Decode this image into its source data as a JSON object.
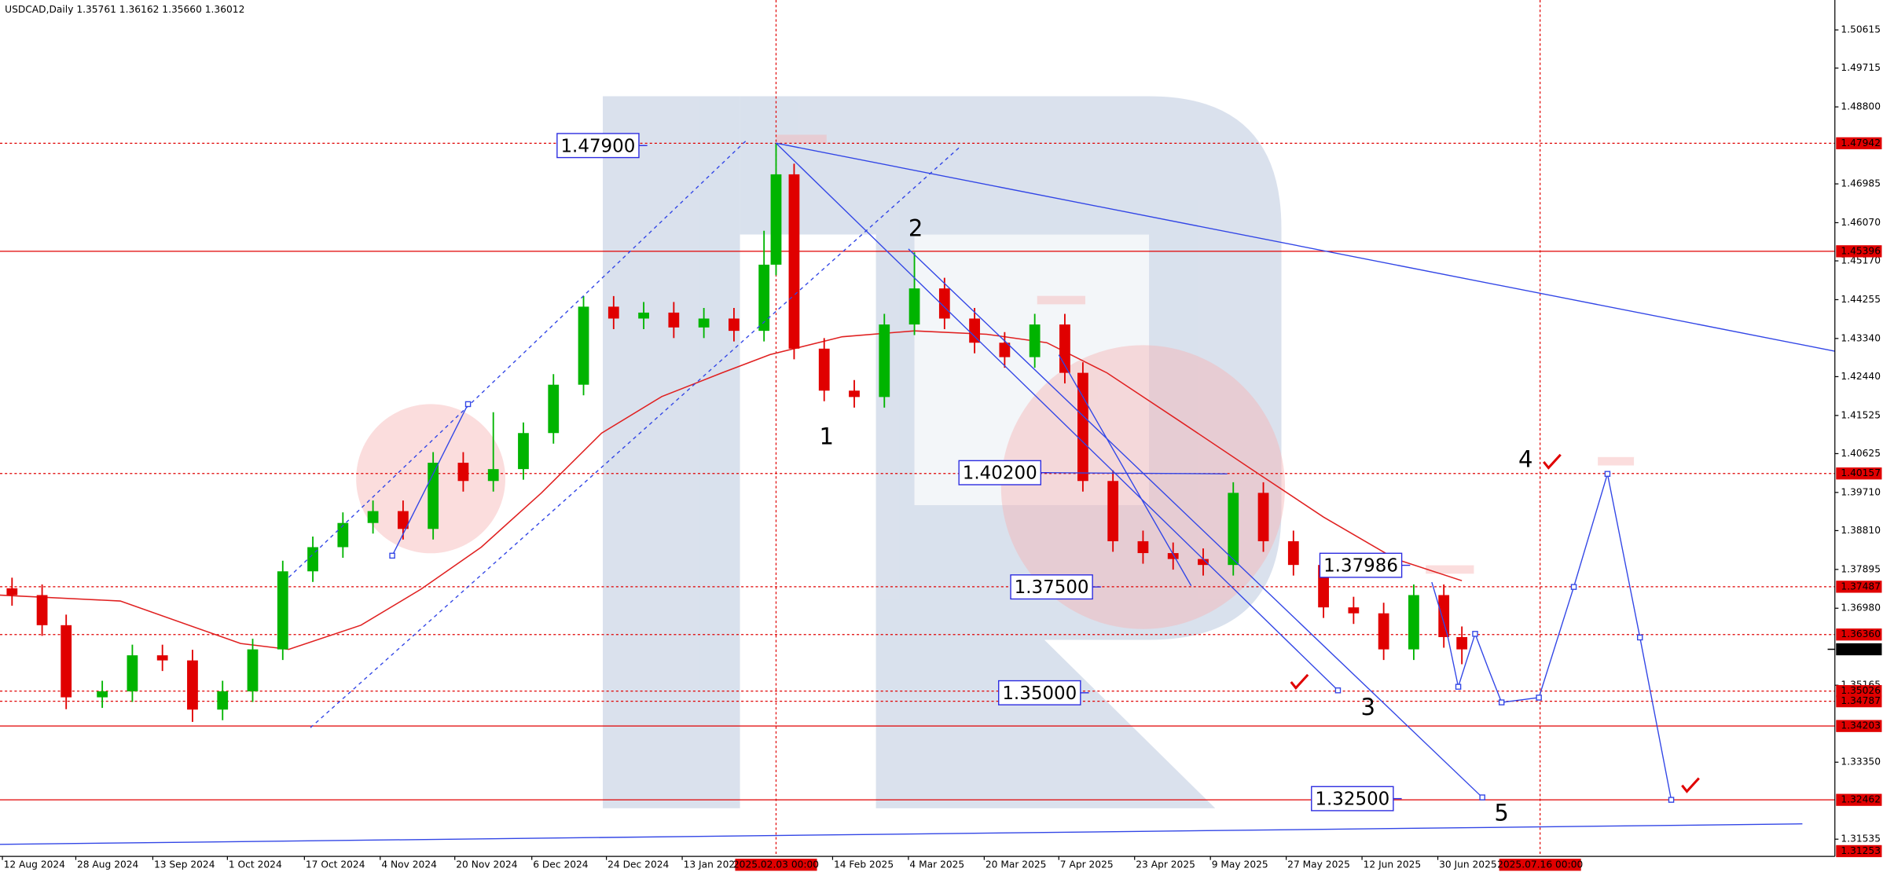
{
  "chart_data": {
    "type": "candlestick",
    "title": "USDCAD,Daily  1.35761 1.36162 1.35660 1.36012",
    "xlim": [
      0,
      305
    ],
    "ylim": [
      1.3113,
      1.5132
    ],
    "xticks": [
      {
        "value": 0.4,
        "label": "12 Aug 2024"
      },
      {
        "value": 12.6,
        "label": "28 Aug 2024"
      },
      {
        "value": 25.4,
        "label": "13 Sep 2024"
      },
      {
        "value": 37.8,
        "label": "1 Oct 2024"
      },
      {
        "value": 50.6,
        "label": "17 Oct 2024"
      },
      {
        "value": 63.2,
        "label": "4 Nov 2024"
      },
      {
        "value": 75.6,
        "label": "20 Nov 2024"
      },
      {
        "value": 88.4,
        "label": "6 Dec 2024"
      },
      {
        "value": 100.8,
        "label": "24 Dec 2024"
      },
      {
        "value": 113.4,
        "label": "13 Jan 2025"
      },
      {
        "value": 138.4,
        "label": "14 Feb 2025"
      },
      {
        "value": 151,
        "label": "4 Mar 2025"
      },
      {
        "value": 163.6,
        "label": "20 Mar 2025"
      },
      {
        "value": 176,
        "label": "7 Apr 2025"
      },
      {
        "value": 188.6,
        "label": "23 Apr 2025"
      },
      {
        "value": 201.2,
        "label": "9 May 2025"
      },
      {
        "value": 213.8,
        "label": "27 May 2025"
      },
      {
        "value": 226.4,
        "label": "12 Jun 2025"
      },
      {
        "value": 239,
        "label": "30 Jun 2025"
      }
    ],
    "yticks": [
      1.50615,
      {
        "value": 1.49715,
        "label": "1.49715"
      },
      {
        "value": 1.488,
        "label": "1.48800"
      },
      1.46985,
      {
        "value": 1.4607,
        "label": "1.46070"
      },
      {
        "value": 1.4517,
        "label": "1.45170"
      },
      1.44255,
      {
        "value": 1.4334,
        "label": "1.43340"
      },
      {
        "value": 1.4244,
        "label": "1.42440"
      },
      1.41525,
      1.40625,
      {
        "value": 1.3971,
        "label": "1.39710"
      },
      {
        "value": 1.3881,
        "label": "1.38810"
      },
      1.37895,
      {
        "value": 1.3698,
        "label": "1.36980"
      },
      1.35165,
      {
        "value": 1.3335,
        "label": "1.33350"
      },
      1.31535
    ],
    "up_color": "#00b400",
    "down_color": "#e00000",
    "x": [
      2,
      7,
      11,
      17,
      22,
      27,
      32,
      37,
      42,
      47,
      52,
      57,
      62,
      67,
      72,
      77,
      82,
      87,
      92,
      97,
      102,
      107,
      112,
      117,
      122,
      127,
      129,
      132,
      137,
      142,
      147,
      152,
      157,
      162,
      167,
      172,
      177,
      180,
      185,
      190,
      195,
      200,
      205,
      210,
      215,
      220,
      225,
      230,
      235,
      240,
      243
    ],
    "open": [
      1.3745,
      1.3729,
      1.3658,
      1.3488,
      1.3502,
      1.3587,
      1.3575,
      1.3459,
      1.3502,
      1.3601,
      1.3785,
      1.3842,
      1.3899,
      1.3927,
      1.3885,
      1.4041,
      1.3998,
      1.4026,
      1.4111,
      1.4225,
      1.4409,
      1.4381,
      1.4395,
      1.436,
      1.4381,
      1.4352,
      1.4508,
      1.4721,
      1.431,
      1.4211,
      1.4196,
      1.4367,
      1.4452,
      1.4381,
      1.4324,
      1.429,
      1.4367,
      1.4253,
      1.3998,
      1.3856,
      1.3828,
      1.3814,
      1.38,
      1.397,
      1.3856,
      1.38,
      1.37,
      1.3686,
      1.3601,
      1.3729,
      1.363
    ],
    "high": [
      1.377,
      1.3754,
      1.3683,
      1.3527,
      1.3612,
      1.3612,
      1.36,
      1.3527,
      1.3626,
      1.381,
      1.3867,
      1.3924,
      1.3952,
      1.3952,
      1.4066,
      1.4066,
      1.416,
      1.4136,
      1.425,
      1.4434,
      1.4434,
      1.442,
      1.442,
      1.4406,
      1.4406,
      1.4588,
      1.4794,
      1.4746,
      1.4335,
      1.4236,
      1.4392,
      1.4537,
      1.4477,
      1.4406,
      1.4349,
      1.4392,
      1.4392,
      1.4278,
      1.4023,
      1.3881,
      1.3853,
      1.3839,
      1.3995,
      1.3995,
      1.3881,
      1.3825,
      1.3725,
      1.3711,
      1.3754,
      1.3754,
      1.3655
    ],
    "low": [
      1.3704,
      1.3633,
      1.346,
      1.3463,
      1.3477,
      1.355,
      1.343,
      1.3434,
      1.3477,
      1.3576,
      1.376,
      1.3817,
      1.3874,
      1.386,
      1.386,
      1.3973,
      1.3973,
      1.4001,
      1.4086,
      1.42,
      1.4356,
      1.4356,
      1.4335,
      1.4335,
      1.4327,
      1.4327,
      1.4483,
      1.4285,
      1.4186,
      1.4171,
      1.4171,
      1.4342,
      1.4356,
      1.4299,
      1.4265,
      1.4265,
      1.4228,
      1.3973,
      1.3831,
      1.3803,
      1.3789,
      1.3775,
      1.3775,
      1.3831,
      1.3775,
      1.3675,
      1.3661,
      1.3576,
      1.3576,
      1.3605,
      1.3566
    ],
    "close": [
      1.3729,
      1.3658,
      1.3488,
      1.3502,
      1.3587,
      1.3575,
      1.3459,
      1.3502,
      1.3601,
      1.3785,
      1.3842,
      1.3899,
      1.3927,
      1.3885,
      1.4041,
      1.3998,
      1.4026,
      1.4111,
      1.4225,
      1.4409,
      1.4381,
      1.4395,
      1.436,
      1.4381,
      1.4352,
      1.4508,
      1.4721,
      1.431,
      1.4211,
      1.4196,
      1.4367,
      1.4452,
      1.4381,
      1.4324,
      1.429,
      1.4367,
      1.4253,
      1.3998,
      1.3856,
      1.3828,
      1.3814,
      1.38,
      1.397,
      1.3856,
      1.38,
      1.37,
      1.3686,
      1.3601,
      1.3729,
      1.363,
      1.3601
    ],
    "moving_average": {
      "color": "#e02020",
      "x": [
        0,
        20,
        40,
        48,
        60,
        70,
        80,
        90,
        100,
        110,
        120,
        128,
        140,
        152,
        164,
        174,
        184,
        196,
        208,
        220,
        232,
        243
      ],
      "values": [
        1.3729,
        1.3715,
        1.3615,
        1.3601,
        1.3658,
        1.3743,
        1.3842,
        1.397,
        1.4111,
        1.4197,
        1.4253,
        1.4296,
        1.4338,
        1.4352,
        1.4344,
        1.4324,
        1.4253,
        1.414,
        1.4026,
        1.3913,
        1.3814,
        1.3763
      ]
    },
    "levels": [
      {
        "value": 1.47942,
        "style": "dotted"
      },
      {
        "value": 1.45396,
        "style": "solid"
      },
      {
        "value": 1.40157,
        "style": "dotted"
      },
      {
        "value": 1.37487,
        "style": "dotted"
      },
      {
        "value": {
          "value": 1.3636,
          "label": "1.36360"
        },
        "style": "dotted"
      },
      {
        "value": 1.35026,
        "style": "dotted"
      },
      {
        "value": 1.34787,
        "style": "dotted"
      },
      {
        "value": 1.34203,
        "style": "solid"
      },
      {
        "value": 1.32462,
        "style": "solid"
      },
      {
        "value": 1.31253,
        "style": "none"
      }
    ],
    "current_price": 1.36012,
    "time_markers": [
      {
        "value": 129,
        "label": "2025.02.03 00:00"
      },
      {
        "value": 256,
        "label": "2025.07.16 00:00"
      }
    ],
    "annotations": [
      "1.47900",
      "1.40200",
      "1.37986",
      "1.37500",
      "1.35000",
      "1.32500"
    ],
    "waves": [
      "1",
      "2",
      "3",
      "4",
      "5"
    ]
  }
}
